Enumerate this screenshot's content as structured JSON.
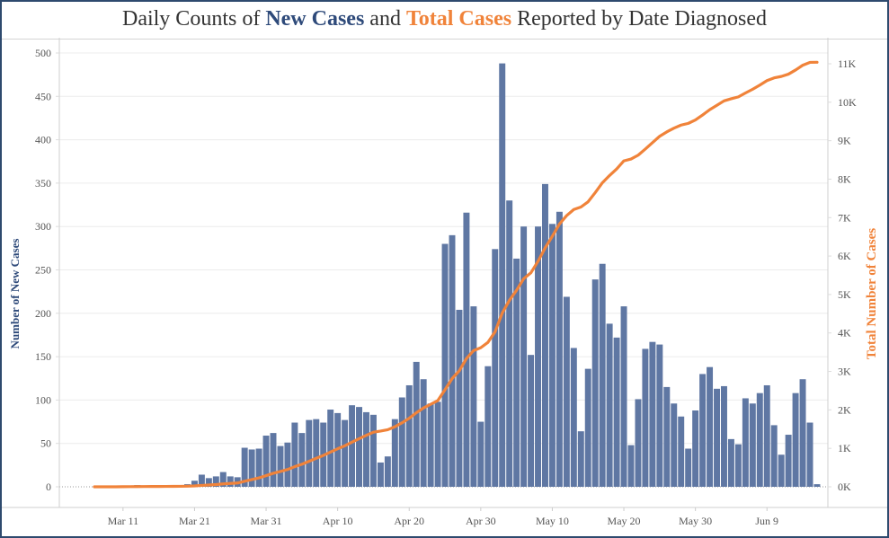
{
  "title": {
    "prefix": "Daily Counts of ",
    "series1": "New Cases",
    "middle": " and ",
    "series2": "Total Cases",
    "suffix": " Reported by Date Diagnosed"
  },
  "colors": {
    "bars": "#5f77a3",
    "line": "#f0833a",
    "left_axis_title": "#2e4a7a",
    "right_axis_title": "#f0833a",
    "frame": "#2e4a6e"
  },
  "chart_data": {
    "type": "bar",
    "title": "Daily Counts of New Cases and Total Cases Reported by Date Diagnosed",
    "xlabel": "",
    "ylabel": "Number of New Cases",
    "y2label": "Total Number of Cases",
    "start_date": "Mar 7",
    "x_tick_labels": [
      "Mar 11",
      "Mar 21",
      "Mar 31",
      "Apr 10",
      "Apr 20",
      "Apr 30",
      "May 10",
      "May 20",
      "May 30",
      "Jun 9"
    ],
    "x_tick_day_offsets": [
      4,
      14,
      24,
      34,
      44,
      54,
      64,
      74,
      84,
      94
    ],
    "y_ticks": [
      0,
      50,
      100,
      150,
      200,
      250,
      300,
      350,
      400,
      450,
      500
    ],
    "y_tick_labels": [
      "0",
      "50",
      "100",
      "150",
      "200",
      "250",
      "300",
      "350",
      "400",
      "450",
      "500"
    ],
    "y2_ticks": [
      0,
      1000,
      2000,
      3000,
      4000,
      5000,
      6000,
      7000,
      8000,
      9000,
      10000,
      11000
    ],
    "y2_tick_labels": [
      "0K",
      "1K",
      "2K",
      "3K",
      "4K",
      "5K",
      "6K",
      "7K",
      "8K",
      "9K",
      "10K",
      "11K"
    ],
    "ylim": [
      -30,
      500
    ],
    "y2lim": [
      -621,
      11000
    ],
    "grid": true,
    "series": [
      {
        "name": "New Cases",
        "type": "bar",
        "values": [
          0,
          0,
          0,
          0,
          1,
          1,
          2,
          1,
          1,
          1,
          0,
          2,
          1,
          3,
          7,
          14,
          10,
          12,
          17,
          12,
          11,
          45,
          43,
          44,
          59,
          62,
          47,
          51,
          74,
          62,
          77,
          78,
          74,
          89,
          85,
          77,
          94,
          92,
          86,
          83,
          28,
          35,
          78,
          103,
          117,
          144,
          124,
          96,
          98,
          280,
          290,
          204,
          316,
          208,
          75,
          139,
          274,
          488,
          330,
          263,
          300,
          152,
          300,
          349,
          303,
          317,
          219,
          160,
          64,
          136,
          239,
          257,
          188,
          172,
          208,
          48,
          101,
          159,
          167,
          164,
          115,
          96,
          81,
          44,
          88,
          130,
          138,
          113,
          116,
          55,
          49,
          102,
          96,
          108,
          117,
          71,
          37,
          60,
          108,
          124,
          74,
          3
        ]
      },
      {
        "name": "Total Cases",
        "type": "line",
        "values": [
          0,
          0,
          0,
          0,
          2,
          4,
          6,
          7,
          8,
          9,
          10,
          12,
          13,
          16,
          23,
          37,
          47,
          59,
          76,
          88,
          99,
          144,
          187,
          231,
          290,
          352,
          399,
          450,
          524,
          586,
          663,
          741,
          815,
          904,
          989,
          1066,
          1160,
          1252,
          1338,
          1421,
          1449,
          1484,
          1562,
          1665,
          1782,
          1926,
          2050,
          2146,
          2244,
          2524,
          2814,
          3018,
          3334,
          3542,
          3617,
          3756,
          4030,
          4518,
          4848,
          5111,
          5411,
          5563,
          5863,
          6212,
          6515,
          6832,
          7051,
          7211,
          7275,
          7411,
          7650,
          7907,
          8095,
          8267,
          8475,
          8523,
          8624,
          8783,
          8950,
          9114,
          9229,
          9325,
          9406,
          9450,
          9538,
          9668,
          9806,
          9919,
          10035,
          10090,
          10139,
          10241,
          10337,
          10445,
          10562,
          10633,
          10670,
          10730,
          10838,
          10962,
          11036,
          11039
        ]
      }
    ]
  }
}
